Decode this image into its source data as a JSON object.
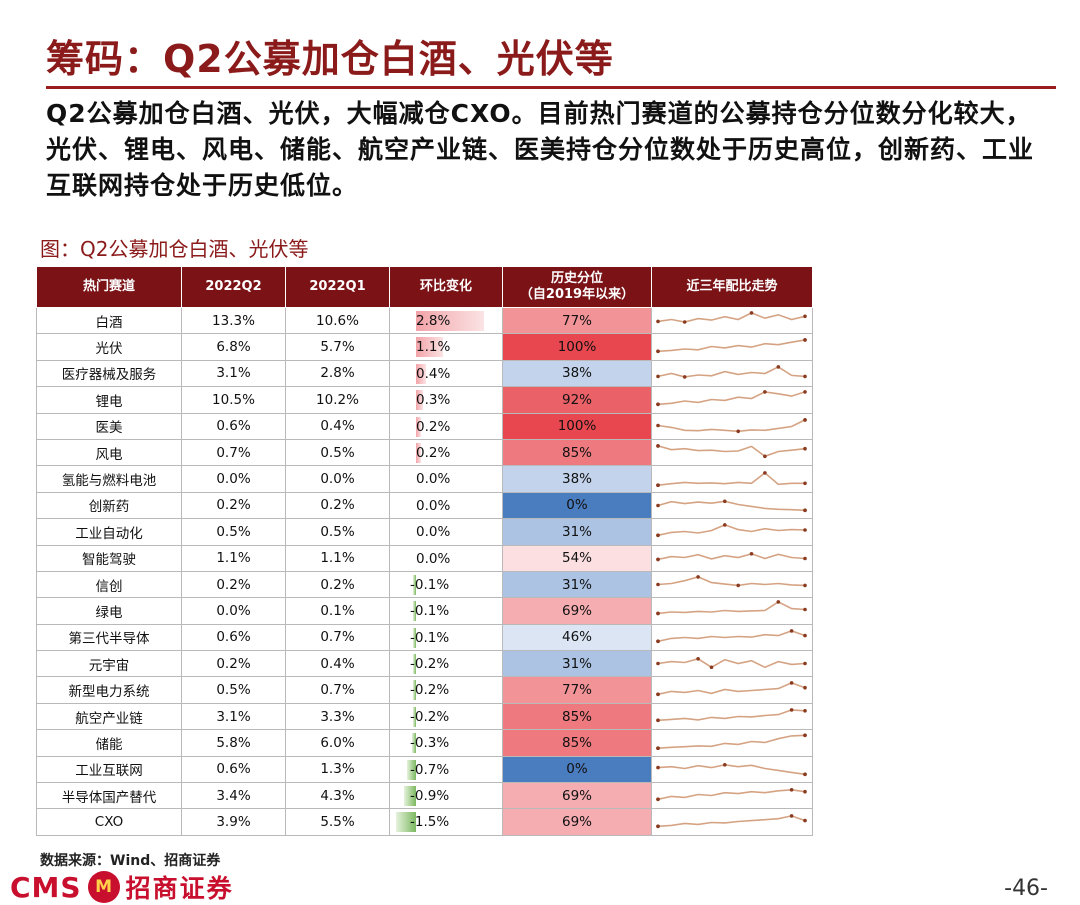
{
  "title": "筹码：Q2公募加仓白酒、光伏等",
  "summary": "Q2公募加仓白酒、光伏，大幅减仓CXO。目前热门赛道的公募持仓分位数分化较大，光伏、锂电、风电、储能、航空产业链、医美持仓分位数处于历史高位，创新药、工业互联网持仓处于历史低位。",
  "figure_caption": "图：Q2公募加仓白酒、光伏等",
  "table": {
    "headers": {
      "sector": "热门赛道",
      "q2": "2022Q2",
      "q1": "2022Q1",
      "change": "环比变化",
      "percentile_line1": "历史分位",
      "percentile_line2": "（自2019年以来）",
      "trend": "近三年配比走势"
    },
    "rows": [
      {
        "sector": "白酒",
        "q2": "13.3%",
        "q1": "10.6%",
        "change": "2.8%",
        "change_value": 2.8,
        "percentile": "77%",
        "percentile_value": 77
      },
      {
        "sector": "光伏",
        "q2": "6.8%",
        "q1": "5.7%",
        "change": "1.1%",
        "change_value": 1.1,
        "percentile": "100%",
        "percentile_value": 100
      },
      {
        "sector": "医疗器械及服务",
        "q2": "3.1%",
        "q1": "2.8%",
        "change": "0.4%",
        "change_value": 0.4,
        "percentile": "38%",
        "percentile_value": 38
      },
      {
        "sector": "锂电",
        "q2": "10.5%",
        "q1": "10.2%",
        "change": "0.3%",
        "change_value": 0.3,
        "percentile": "92%",
        "percentile_value": 92
      },
      {
        "sector": "医美",
        "q2": "0.6%",
        "q1": "0.4%",
        "change": "0.2%",
        "change_value": 0.2,
        "percentile": "100%",
        "percentile_value": 100
      },
      {
        "sector": "风电",
        "q2": "0.7%",
        "q1": "0.5%",
        "change": "0.2%",
        "change_value": 0.2,
        "percentile": "85%",
        "percentile_value": 85
      },
      {
        "sector": "氢能与燃料电池",
        "q2": "0.0%",
        "q1": "0.0%",
        "change": "0.0%",
        "change_value": 0.0,
        "percentile": "38%",
        "percentile_value": 38
      },
      {
        "sector": "创新药",
        "q2": "0.2%",
        "q1": "0.2%",
        "change": "0.0%",
        "change_value": 0.0,
        "percentile": "0%",
        "percentile_value": 0
      },
      {
        "sector": "工业自动化",
        "q2": "0.5%",
        "q1": "0.5%",
        "change": "0.0%",
        "change_value": 0.0,
        "percentile": "31%",
        "percentile_value": 31
      },
      {
        "sector": "智能驾驶",
        "q2": "1.1%",
        "q1": "1.1%",
        "change": "0.0%",
        "change_value": 0.0,
        "percentile": "54%",
        "percentile_value": 54
      },
      {
        "sector": "信创",
        "q2": "0.2%",
        "q1": "0.2%",
        "change": "-0.1%",
        "change_value": -0.1,
        "percentile": "31%",
        "percentile_value": 31
      },
      {
        "sector": "绿电",
        "q2": "0.0%",
        "q1": "0.1%",
        "change": "-0.1%",
        "change_value": -0.1,
        "percentile": "69%",
        "percentile_value": 69
      },
      {
        "sector": "第三代半导体",
        "q2": "0.6%",
        "q1": "0.7%",
        "change": "-0.1%",
        "change_value": -0.1,
        "percentile": "46%",
        "percentile_value": 46
      },
      {
        "sector": "元宇宙",
        "q2": "0.2%",
        "q1": "0.4%",
        "change": "-0.2%",
        "change_value": -0.2,
        "percentile": "31%",
        "percentile_value": 31
      },
      {
        "sector": "新型电力系统",
        "q2": "0.5%",
        "q1": "0.7%",
        "change": "-0.2%",
        "change_value": -0.2,
        "percentile": "77%",
        "percentile_value": 77
      },
      {
        "sector": "航空产业链",
        "q2": "3.1%",
        "q1": "3.3%",
        "change": "-0.2%",
        "change_value": -0.2,
        "percentile": "85%",
        "percentile_value": 85
      },
      {
        "sector": "储能",
        "q2": "5.8%",
        "q1": "6.0%",
        "change": "-0.3%",
        "change_value": -0.3,
        "percentile": "85%",
        "percentile_value": 85
      },
      {
        "sector": "工业互联网",
        "q2": "0.6%",
        "q1": "1.3%",
        "change": "-0.7%",
        "change_value": -0.7,
        "percentile": "0%",
        "percentile_value": 0
      },
      {
        "sector": "半导体国产替代",
        "q2": "3.4%",
        "q1": "4.3%",
        "change": "-0.9%",
        "change_value": -0.9,
        "percentile": "69%",
        "percentile_value": 69
      },
      {
        "sector": "CXO",
        "q2": "3.9%",
        "q1": "5.5%",
        "change": "-1.5%",
        "change_value": -1.5,
        "percentile": "69%",
        "percentile_value": 69
      }
    ]
  },
  "trend_sparklines": [
    [
      0.45,
      0.55,
      0.42,
      0.6,
      0.52,
      0.7,
      0.55,
      0.9,
      0.62,
      0.8,
      0.55,
      0.72
    ],
    [
      0.3,
      0.35,
      0.42,
      0.38,
      0.55,
      0.48,
      0.6,
      0.52,
      0.7,
      0.65,
      0.78,
      0.9
    ],
    [
      0.35,
      0.5,
      0.32,
      0.42,
      0.38,
      0.6,
      0.45,
      0.55,
      0.5,
      0.85,
      0.4,
      0.35
    ],
    [
      0.25,
      0.3,
      0.42,
      0.35,
      0.5,
      0.45,
      0.62,
      0.55,
      0.9,
      0.8,
      0.68,
      0.9
    ],
    [
      0.55,
      0.45,
      0.3,
      0.28,
      0.35,
      0.3,
      0.25,
      0.32,
      0.3,
      0.4,
      0.5,
      0.85
    ],
    [
      0.85,
      0.65,
      0.7,
      0.6,
      0.62,
      0.55,
      0.58,
      0.82,
      0.3,
      0.55,
      0.62,
      0.7
    ],
    [
      0.2,
      0.28,
      0.35,
      0.3,
      0.32,
      0.28,
      0.35,
      0.3,
      0.85,
      0.25,
      0.3,
      0.3
    ],
    [
      0.5,
      0.7,
      0.6,
      0.68,
      0.62,
      0.72,
      0.55,
      0.45,
      0.35,
      0.3,
      0.28,
      0.25
    ],
    [
      0.3,
      0.45,
      0.5,
      0.42,
      0.55,
      0.85,
      0.6,
      0.5,
      0.65,
      0.55,
      0.6,
      0.58
    ],
    [
      0.45,
      0.6,
      0.55,
      0.7,
      0.48,
      0.65,
      0.55,
      0.75,
      0.5,
      0.72,
      0.55,
      0.5
    ],
    [
      0.5,
      0.55,
      0.7,
      0.9,
      0.6,
      0.52,
      0.45,
      0.55,
      0.5,
      0.55,
      0.48,
      0.45
    ],
    [
      0.35,
      0.42,
      0.4,
      0.45,
      0.42,
      0.5,
      0.45,
      0.48,
      0.5,
      0.95,
      0.6,
      0.55
    ],
    [
      0.3,
      0.45,
      0.5,
      0.45,
      0.55,
      0.5,
      0.55,
      0.52,
      0.65,
      0.6,
      0.85,
      0.6
    ],
    [
      0.5,
      0.6,
      0.55,
      0.75,
      0.3,
      0.7,
      0.5,
      0.65,
      0.3,
      0.6,
      0.45,
      0.5
    ],
    [
      0.3,
      0.45,
      0.4,
      0.5,
      0.35,
      0.55,
      0.45,
      0.5,
      0.55,
      0.6,
      0.9,
      0.65
    ],
    [
      0.3,
      0.35,
      0.4,
      0.32,
      0.45,
      0.4,
      0.5,
      0.48,
      0.55,
      0.6,
      0.85,
      0.8
    ],
    [
      0.2,
      0.25,
      0.28,
      0.32,
      0.3,
      0.45,
      0.4,
      0.55,
      0.5,
      0.7,
      0.85,
      0.88
    ],
    [
      0.6,
      0.65,
      0.55,
      0.7,
      0.6,
      0.75,
      0.65,
      0.72,
      0.55,
      0.45,
      0.35,
      0.25
    ],
    [
      0.3,
      0.45,
      0.4,
      0.55,
      0.5,
      0.65,
      0.6,
      0.7,
      0.65,
      0.75,
      0.8,
      0.7
    ],
    [
      0.3,
      0.35,
      0.45,
      0.4,
      0.5,
      0.48,
      0.55,
      0.6,
      0.65,
      0.7,
      0.85,
      0.6
    ]
  ],
  "source": "数据来源：Wind、招商证券",
  "logo": {
    "brand": "CMS",
    "badge": "M",
    "name": "招商证券"
  },
  "page_number": "-46-",
  "colors": {
    "header_bg": "#7a1216",
    "title": "#8b1a1a",
    "high_percentile": "#e8474f",
    "low_percentile": "#4a7cc0",
    "positive_bar": "#f2a3a8",
    "negative_bar": "#7cb860",
    "sparkline": "#d5a383",
    "sparkline_marker": "#8a3a1f"
  }
}
